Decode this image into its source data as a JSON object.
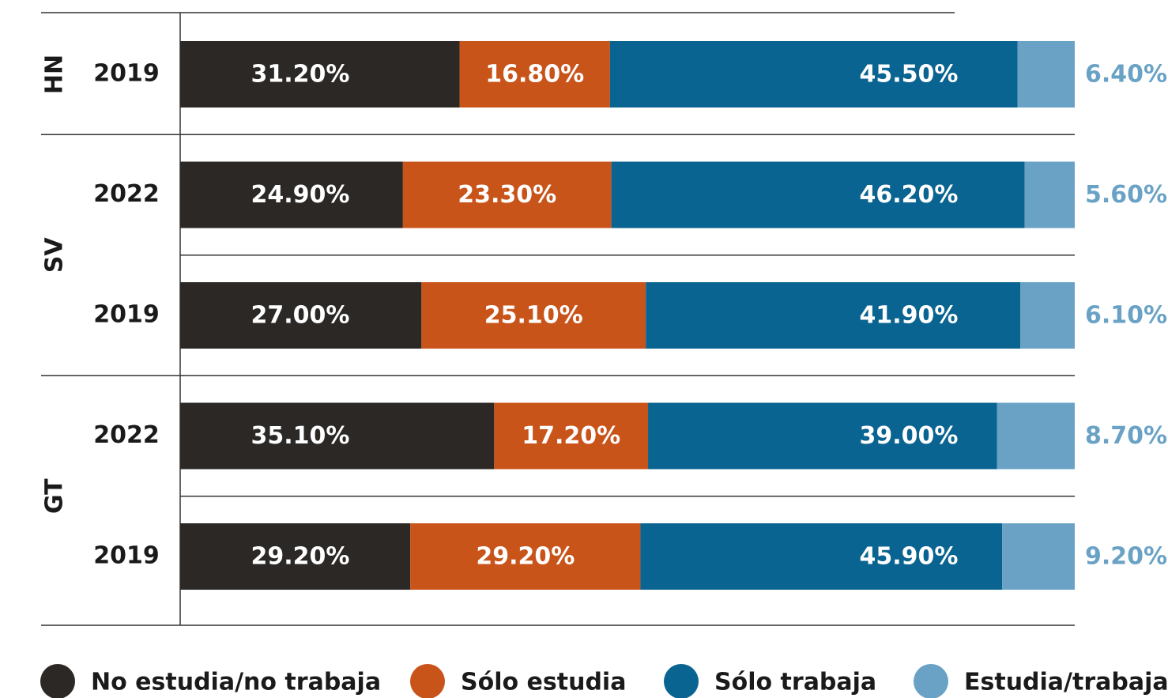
{
  "chart_data": {
    "type": "bar",
    "orientation": "horizontal",
    "stacked": true,
    "groups": [
      {
        "label": "HN",
        "categories": [
          "2019"
        ]
      },
      {
        "label": "SV",
        "categories": [
          "2022",
          "2019"
        ]
      },
      {
        "label": "GT",
        "categories": [
          "2022",
          "2019"
        ]
      }
    ],
    "series": [
      {
        "name": "No estudia/no trabaja",
        "color": "#2b2826",
        "values": [
          31.2,
          24.9,
          27.0,
          35.1,
          29.2
        ],
        "value_labels": [
          "31.20%",
          "24.90%",
          "27.00%",
          "35.10%",
          "29.20%"
        ]
      },
      {
        "name": "Sólo estudia",
        "color": "#c9541a",
        "values": [
          16.8,
          23.3,
          25.1,
          17.2,
          29.2
        ],
        "value_labels": [
          "16.80%",
          "23.30%",
          "25.10%",
          "17.20%",
          "29.20%"
        ]
      },
      {
        "name": "Sólo trabaja",
        "color": "#0a6491",
        "values": [
          45.5,
          46.2,
          41.9,
          39.0,
          45.9
        ],
        "value_labels": [
          "45.50%",
          "46.20%",
          "41.90%",
          "39.00%",
          "45.90%"
        ]
      },
      {
        "name": "Estudia/trabaja",
        "color": "#6aa2c6",
        "values": [
          6.4,
          5.6,
          6.1,
          8.7,
          9.2
        ],
        "value_labels": [
          "6.40%",
          "5.60%",
          "6.10%",
          "8.70%",
          "9.20%"
        ]
      }
    ],
    "legend": "bottom"
  }
}
